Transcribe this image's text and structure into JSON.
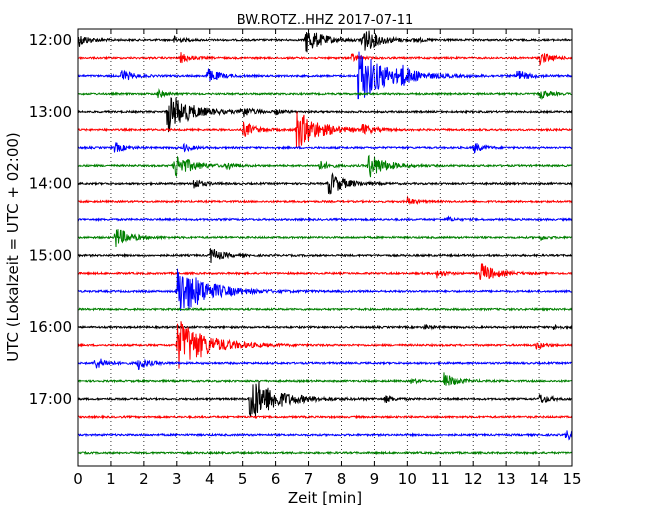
{
  "chart_data": {
    "type": "line",
    "title": "BW.ROTZ..HHZ 2017-07-11",
    "xlabel": "Zeit  [min]",
    "ylabel": "UTC (Lokalzeit = UTC + 02:00)",
    "xlim": [
      0,
      15
    ],
    "x_ticks": [
      "0",
      "1",
      "2",
      "3",
      "4",
      "5",
      "6",
      "7",
      "8",
      "9",
      "10",
      "11",
      "12",
      "13",
      "14",
      "15"
    ],
    "y_ticks": [
      "12:00",
      "13:00",
      "14:00",
      "15:00",
      "16:00",
      "17:00"
    ],
    "grid": "vertical-dotted",
    "trace_colors": [
      "#000000",
      "#ff0000",
      "#0000ff",
      "#008000"
    ],
    "series": [
      {
        "hour": "12:00",
        "events": [
          [
            0.0,
            0.5
          ],
          [
            2.9,
            0.3
          ],
          [
            6.9,
            1.0
          ],
          [
            8.6,
            1.0
          ],
          [
            10.2,
            0.2
          ]
        ]
      },
      {
        "hour": "12:15",
        "events": [
          [
            3.1,
            0.4
          ],
          [
            8.3,
            0.3
          ],
          [
            14.0,
            0.5
          ]
        ]
      },
      {
        "hour": "12:30",
        "events": [
          [
            1.3,
            0.5
          ],
          [
            3.9,
            0.6
          ],
          [
            8.5,
            2.0
          ],
          [
            9.8,
            0.5
          ],
          [
            13.3,
            0.5
          ]
        ]
      },
      {
        "hour": "12:45",
        "events": [
          [
            2.4,
            0.3
          ],
          [
            14.0,
            0.4
          ]
        ]
      },
      {
        "hour": "13:00",
        "events": [
          [
            2.7,
            1.5
          ],
          [
            4.9,
            0.5
          ],
          [
            6.0,
            0.2
          ]
        ]
      },
      {
        "hour": "13:15",
        "events": [
          [
            5.0,
            0.6
          ],
          [
            6.6,
            1.5
          ],
          [
            8.6,
            0.4
          ]
        ]
      },
      {
        "hour": "13:30",
        "events": [
          [
            1.1,
            0.4
          ],
          [
            3.2,
            0.3
          ],
          [
            12.0,
            0.4
          ]
        ]
      },
      {
        "hour": "13:45",
        "events": [
          [
            2.9,
            1.0
          ],
          [
            4.5,
            0.3
          ],
          [
            7.3,
            0.4
          ],
          [
            8.8,
            1.0
          ]
        ]
      },
      {
        "hour": "14:00",
        "events": [
          [
            3.5,
            0.4
          ],
          [
            7.6,
            0.9
          ],
          [
            15.0,
            0.3
          ]
        ]
      },
      {
        "hour": "14:15",
        "events": [
          [
            10.0,
            0.3
          ]
        ]
      },
      {
        "hour": "14:30",
        "events": [
          [
            11.2,
            0.2
          ]
        ]
      },
      {
        "hour": "14:45",
        "events": [
          [
            1.1,
            0.8
          ],
          [
            14.0,
            0.2
          ]
        ]
      },
      {
        "hour": "15:00",
        "events": [
          [
            4.0,
            0.6
          ]
        ]
      },
      {
        "hour": "15:15",
        "events": [
          [
            10.9,
            0.3
          ],
          [
            12.2,
            0.8
          ]
        ]
      },
      {
        "hour": "15:30",
        "events": [
          [
            3.0,
            2.0
          ]
        ]
      },
      {
        "hour": "15:45",
        "events": []
      },
      {
        "hour": "16:00",
        "events": [
          [
            10.5,
            0.2
          ],
          [
            14.4,
            0.2
          ]
        ]
      },
      {
        "hour": "16:15",
        "events": [
          [
            3.0,
            2.0
          ],
          [
            13.9,
            0.3
          ]
        ]
      },
      {
        "hour": "16:30",
        "events": [
          [
            0.5,
            0.5
          ],
          [
            1.8,
            0.5
          ]
        ]
      },
      {
        "hour": "16:45",
        "events": [
          [
            10.1,
            0.2
          ],
          [
            11.1,
            0.6
          ]
        ]
      },
      {
        "hour": "17:00",
        "events": [
          [
            5.2,
            1.8
          ],
          [
            9.3,
            0.3
          ],
          [
            14.0,
            0.4
          ]
        ]
      },
      {
        "hour": "17:15",
        "events": []
      },
      {
        "hour": "17:30",
        "events": [
          [
            14.8,
            0.4
          ]
        ]
      },
      {
        "hour": "17:45",
        "events": []
      }
    ]
  }
}
